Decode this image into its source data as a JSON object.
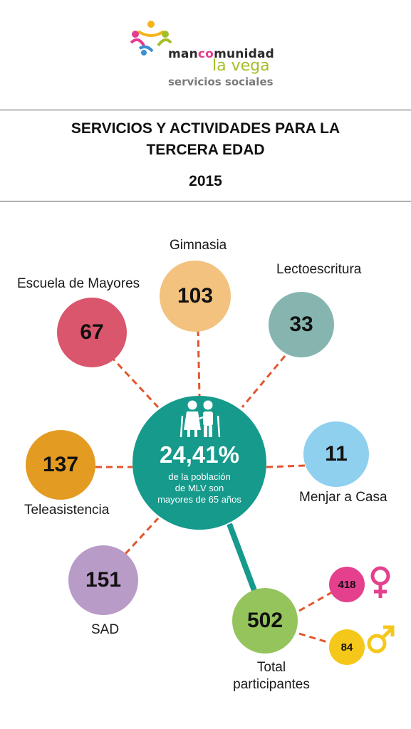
{
  "logo": {
    "line1_prefix": "man",
    "line1_highlight": "co",
    "line1_suffix": "munidad",
    "line2": "la vega",
    "line3": "servicios sociales"
  },
  "header": {
    "title_line1": "SERVICIOS Y ACTIVIDADES PARA LA",
    "title_line2": "TERCERA EDAD",
    "year": "2015"
  },
  "center": {
    "icon": "elderly-couple-icon",
    "percentage": "24,41%",
    "description_line1": "de la población",
    "description_line2": "de MLV son",
    "description_line3": "mayores de 65 años"
  },
  "services": [
    {
      "name": "Escuela de Mayores",
      "value": "67",
      "color": "#d9566c"
    },
    {
      "name": "Gimnasia",
      "value": "103",
      "color": "#f2c27e"
    },
    {
      "name": "Lectoescritura",
      "value": "33",
      "color": "#86b5b0"
    },
    {
      "name": "Teleasistencia",
      "value": "137",
      "color": "#e49b22"
    },
    {
      "name": "Menjar a Casa",
      "value": "11",
      "color": "#8fd0ee"
    },
    {
      "name": "SAD",
      "value": "151",
      "color": "#b99bc8"
    }
  ],
  "total": {
    "label_line1": "Total",
    "label_line2": "participantes",
    "value": "502",
    "color": "#95c45c"
  },
  "gender": {
    "female": {
      "value": "418",
      "icon": "female-symbol-icon",
      "color": "#e4408e"
    },
    "male": {
      "value": "84",
      "icon": "male-symbol-icon",
      "color": "#f5c71a"
    }
  },
  "colors": {
    "center": "#159a8c",
    "connector": "#e2572e",
    "total_connector": "#159a8c"
  }
}
